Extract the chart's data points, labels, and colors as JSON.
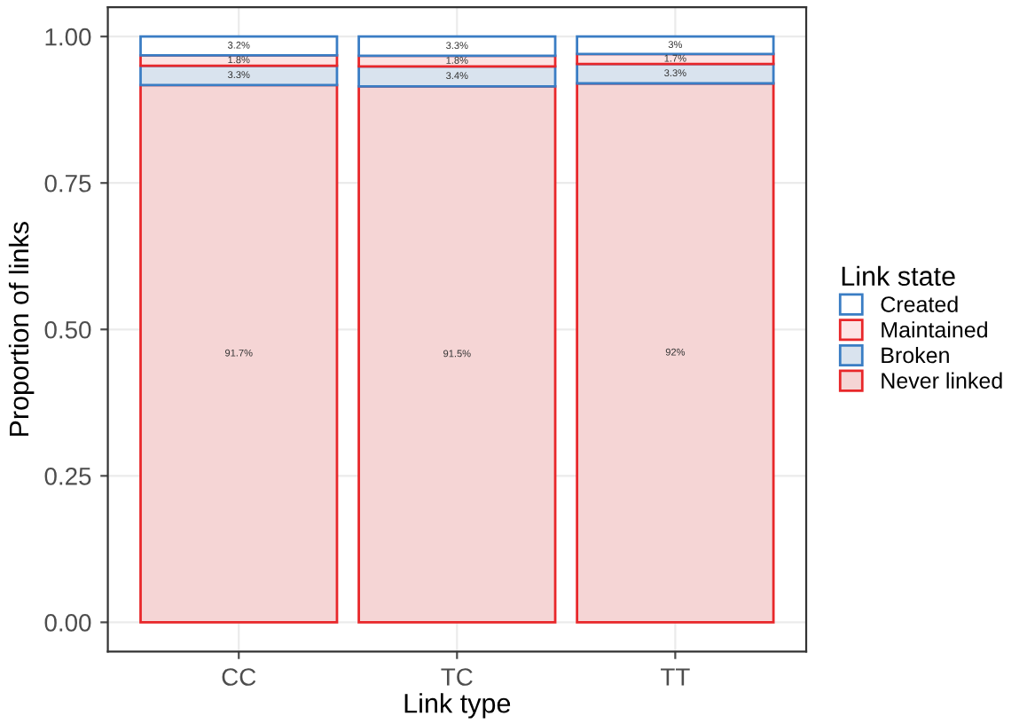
{
  "chart_data": {
    "type": "bar",
    "stacked": true,
    "xlabel": "Link type",
    "ylabel": "Proportion of links",
    "legend_title": "Link state",
    "categories": [
      "CC",
      "TC",
      "TT"
    ],
    "series": [
      {
        "name": "Never linked",
        "color": "#f5d5d5",
        "values": [
          0.917,
          0.915,
          0.92
        ],
        "value_labels": [
          "91.7%",
          "91.5%",
          "92%"
        ]
      },
      {
        "name": "Broken",
        "color": "#d9e3ee",
        "values": [
          0.033,
          0.034,
          0.033
        ],
        "value_labels": [
          "3.3%",
          "3.4%",
          "3.3%"
        ]
      },
      {
        "name": "Maintained",
        "color": "#fde4e4",
        "values": [
          0.018,
          0.018,
          0.017
        ],
        "value_labels": [
          "1.8%",
          "1.8%",
          "1.7%"
        ]
      },
      {
        "name": "Created",
        "color": "#ffffff",
        "values": [
          0.032,
          0.033,
          0.03
        ],
        "value_labels": [
          "3.2%",
          "3.3%",
          "3%"
        ]
      }
    ],
    "ylim": [
      -0.05,
      1.05
    ],
    "yticks": [
      {
        "value": 0,
        "label": "0.00"
      },
      {
        "value": 0.25,
        "label": "0.25"
      },
      {
        "value": 0.5,
        "label": "0.50"
      },
      {
        "value": 0.75,
        "label": "0.75"
      },
      {
        "value": 1,
        "label": "1.00"
      }
    ],
    "grid": true,
    "legend": "right"
  }
}
